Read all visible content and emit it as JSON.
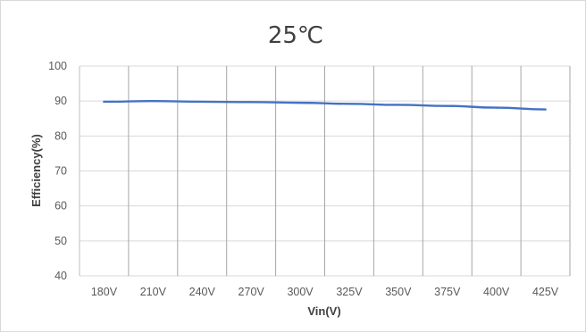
{
  "chart_data": {
    "type": "line",
    "title": "25℃",
    "xlabel": "Vin(V)",
    "ylabel": "Efficiency(%)",
    "categories": [
      "180V",
      "210V",
      "240V",
      "270V",
      "300V",
      "325V",
      "350V",
      "375V",
      "400V",
      "425V"
    ],
    "series": [
      {
        "values": [
          89.8,
          90.0,
          89.8,
          89.7,
          89.5,
          89.2,
          88.9,
          88.6,
          88.1,
          87.6
        ]
      }
    ],
    "yticks": [
      "40",
      "50",
      "60",
      "70",
      "80",
      "90",
      "100"
    ],
    "ylim": [
      40,
      100
    ],
    "grid": "vertical lines at category boundaries, horizontal gridlines at each y tick",
    "legend": "none",
    "colors": {
      "line": "#4472C4",
      "grid": "#d9d9d9",
      "category_grid": "#a6a6a6"
    }
  }
}
